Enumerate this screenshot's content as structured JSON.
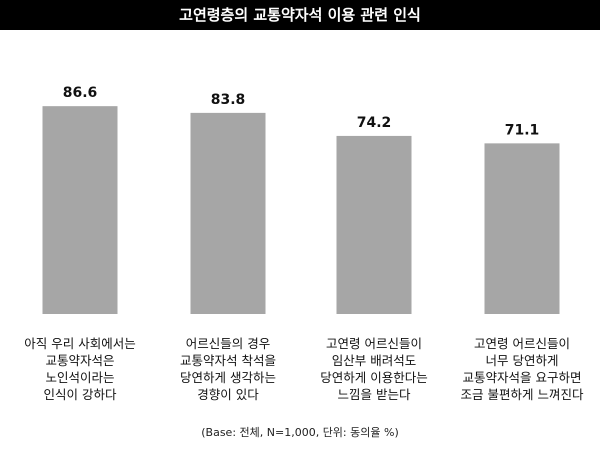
{
  "chart_data": {
    "type": "bar",
    "title": "고연령층의 교통약자석 이용 관련 인식",
    "categories": [
      "아직 우리 사회에서는\n교통약자석은\n노인석이라는\n인식이 강하다",
      "어르신들의 경우\n교통약자석 착석을\n당연하게 생각하는\n경향이 있다",
      "고연령 어르신들이\n임산부 배려석도\n당연하게 이용한다는\n느낌을 받는다",
      "고연령 어르신들이\n너무 당연하게\n교통약자석을 요구하면\n조금 불편하게 느껴진다"
    ],
    "values": [
      86.6,
      83.8,
      74.2,
      71.1
    ],
    "value_labels": [
      "86.6",
      "83.8",
      "74.2",
      "71.1"
    ],
    "ylim": [
      0,
      100
    ],
    "xlabel": "",
    "ylabel": "",
    "grid": false,
    "bar_color": "#a6a6a6",
    "note": "(Base: 전체, N=1,000, 단위: 동의율 %)"
  }
}
